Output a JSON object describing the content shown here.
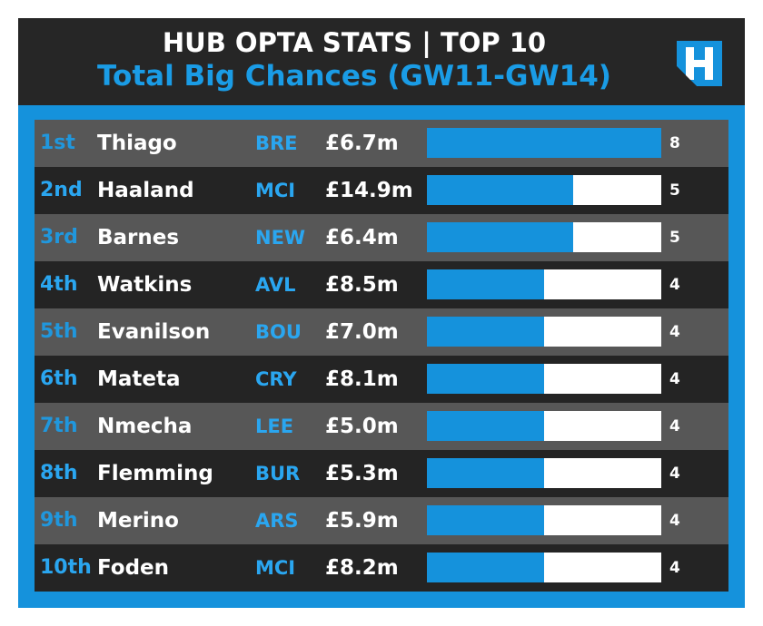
{
  "header": {
    "title": "HUB OPTA STATS | TOP 10",
    "subtitle": "Total Big Chances (GW11-GW14)"
  },
  "colors": {
    "accent": "#1592dc",
    "header_bg": "#262626",
    "row_light": "#575757",
    "row_dark": "#242424",
    "bar_track": "#ffffff"
  },
  "logo": {
    "icon": "fantasy-football-hub-logo-icon",
    "alt": "H"
  },
  "rows": [
    {
      "rank": "1st",
      "name": "Thiago",
      "team": "BRE",
      "price": "£6.7m",
      "value": "8"
    },
    {
      "rank": "2nd",
      "name": "Haaland",
      "team": "MCI",
      "price": "£14.9m",
      "value": "5"
    },
    {
      "rank": "3rd",
      "name": "Barnes",
      "team": "NEW",
      "price": "£6.4m",
      "value": "5"
    },
    {
      "rank": "4th",
      "name": "Watkins",
      "team": "AVL",
      "price": "£8.5m",
      "value": "4"
    },
    {
      "rank": "5th",
      "name": "Evanilson",
      "team": "BOU",
      "price": "£7.0m",
      "value": "4"
    },
    {
      "rank": "6th",
      "name": "Mateta",
      "team": "CRY",
      "price": "£8.1m",
      "value": "4"
    },
    {
      "rank": "7th",
      "name": "Nmecha",
      "team": "LEE",
      "price": "£5.0m",
      "value": "4"
    },
    {
      "rank": "8th",
      "name": "Flemming",
      "team": "BUR",
      "price": "£5.3m",
      "value": "4"
    },
    {
      "rank": "9th",
      "name": "Merino",
      "team": "ARS",
      "price": "£5.9m",
      "value": "4"
    },
    {
      "rank": "10th",
      "name": "Foden",
      "team": "MCI",
      "price": "£8.2m",
      "value": "4"
    }
  ],
  "chart_data": {
    "type": "bar",
    "orientation": "horizontal",
    "title": "HUB OPTA STATS | TOP 10",
    "subtitle": "Total Big Chances (GW11-GW14)",
    "categories": [
      "Thiago",
      "Haaland",
      "Barnes",
      "Watkins",
      "Evanilson",
      "Mateta",
      "Nmecha",
      "Flemming",
      "Merino",
      "Foden"
    ],
    "values": [
      8,
      5,
      5,
      4,
      4,
      4,
      4,
      4,
      4,
      4
    ],
    "xlim": [
      0,
      8
    ],
    "grid": false,
    "legend": "none"
  }
}
